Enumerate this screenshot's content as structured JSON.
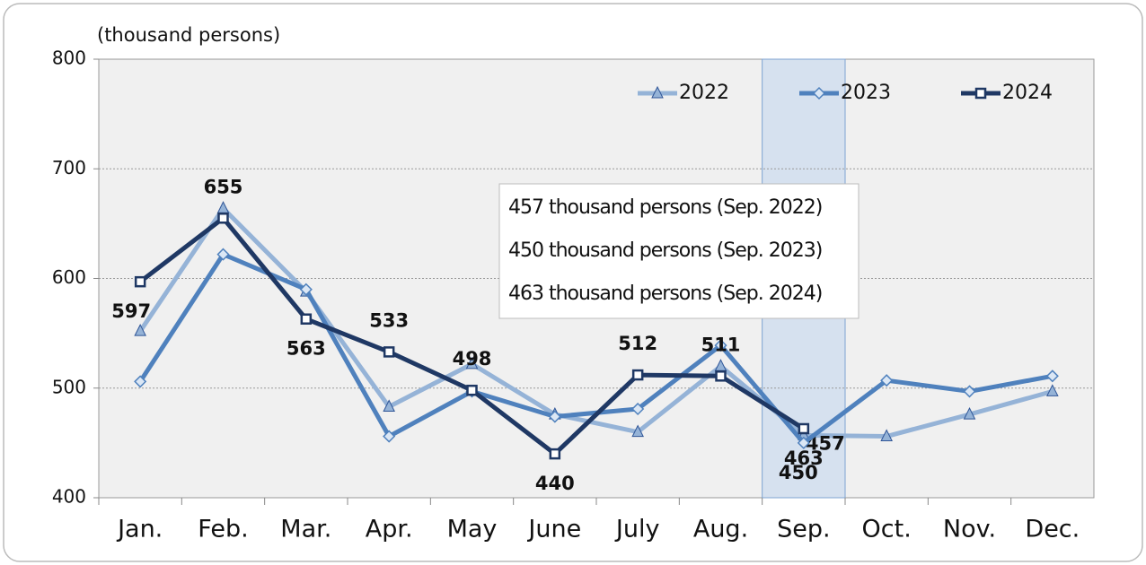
{
  "chart_data": {
    "type": "line",
    "y_label": "(thousand persons)",
    "categories": [
      "Jan.",
      "Feb.",
      "Mar.",
      "Apr.",
      "May",
      "June",
      "July",
      "Aug.",
      "Sep.",
      "Oct.",
      "Nov.",
      "Dec."
    ],
    "series": [
      {
        "name": "2022",
        "color": "#95b3d7",
        "marker": "triangle",
        "values": [
          552,
          664,
          588,
          483,
          522,
          476,
          460,
          520,
          457,
          456,
          476,
          497
        ]
      },
      {
        "name": "2023",
        "color": "#4f81bd",
        "marker": "diamond",
        "values": [
          506,
          622,
          590,
          456,
          497,
          474,
          481,
          539,
          450,
          507,
          497,
          511
        ]
      },
      {
        "name": "2024",
        "color": "#1f3864",
        "marker": "square",
        "labels": true,
        "values": [
          597,
          655,
          563,
          533,
          498,
          440,
          512,
          511,
          463,
          null,
          null,
          null
        ]
      }
    ],
    "highlight": "Sep.",
    "annotations": [
      "457 thousand persons (Sep. 2022)",
      "450 thousand persons (Sep. 2023)",
      "463 thousand persons (Sep. 2024)"
    ],
    "ylim": [
      400,
      800
    ],
    "yticks": [
      400,
      500,
      600,
      700,
      800
    ],
    "grid": true,
    "legend": "top-right"
  }
}
